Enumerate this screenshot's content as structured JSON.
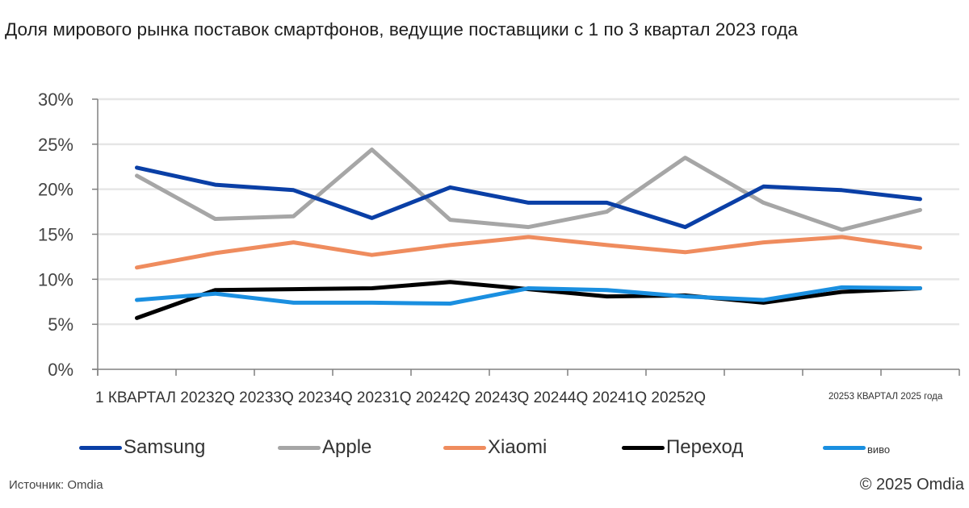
{
  "header": {
    "title": "Доля мирового рынка поставок смартфонов, ведущие поставщики с 1 по 3 квартал 2023 года"
  },
  "footer": {
    "source": "Источник: Omdia",
    "copyright": "© 2025 Omdia"
  },
  "legend": {
    "items": [
      {
        "label": "Samsung",
        "color": "#0a3fa6"
      },
      {
        "label": "Apple",
        "color": "#a6a6a6"
      },
      {
        "label": "Xiaomi",
        "color": "#ef8c5e"
      },
      {
        "label": "Переход",
        "color": "#000000"
      },
      {
        "label": "виво",
        "color": "#1a8fe0"
      }
    ]
  },
  "chart_data": {
    "type": "line",
    "title": "Доля мирового рынка поставок смартфонов, ведущие поставщики с 1 по 3 квартал 2023 года",
    "xlabel": "",
    "ylabel": "",
    "ylim": [
      0,
      30
    ],
    "yticks": [
      "0%",
      "5%",
      "10%",
      "15%",
      "20%",
      "25%",
      "30%"
    ],
    "grid": true,
    "legend_position": "bottom",
    "categories": [
      "1 КВАРТАЛ 2023",
      "2Q 2023",
      "3Q 2023",
      "4Q 2023",
      "1Q 2024",
      "2Q 2024",
      "3Q 2024",
      "4Q 2024",
      "1Q 2025",
      "2Q 2025",
      "3 КВАРТАЛ 2025 года"
    ],
    "xtick_text": "1 КВАРТАЛ 20232Q 20233Q 20234Q 20231Q 20242Q 20243Q 20244Q 20241Q 20252Q",
    "xtick_text_small": "20253 КВАРТАЛ 2025 года",
    "series": [
      {
        "name": "Samsung",
        "color": "#0a3fa6",
        "values": [
          22.4,
          20.5,
          19.9,
          16.8,
          20.2,
          18.5,
          18.5,
          15.8,
          20.3,
          19.9,
          18.9
        ]
      },
      {
        "name": "Apple",
        "color": "#a6a6a6",
        "values": [
          21.5,
          16.7,
          17.0,
          24.4,
          16.6,
          15.8,
          17.5,
          23.5,
          18.5,
          15.5,
          17.7
        ]
      },
      {
        "name": "Xiaomi",
        "color": "#ef8c5e",
        "values": [
          11.3,
          12.9,
          14.1,
          12.7,
          13.8,
          14.7,
          13.8,
          13.0,
          14.1,
          14.7,
          13.5
        ]
      },
      {
        "name": "Переход",
        "color": "#000000",
        "values": [
          5.7,
          8.8,
          8.9,
          9.0,
          9.7,
          8.9,
          8.1,
          8.2,
          7.4,
          8.6,
          9.0
        ]
      },
      {
        "name": "виво",
        "color": "#1a8fe0",
        "values": [
          7.7,
          8.4,
          7.4,
          7.4,
          7.3,
          9.0,
          8.8,
          8.1,
          7.7,
          9.1,
          9.0
        ]
      }
    ]
  }
}
